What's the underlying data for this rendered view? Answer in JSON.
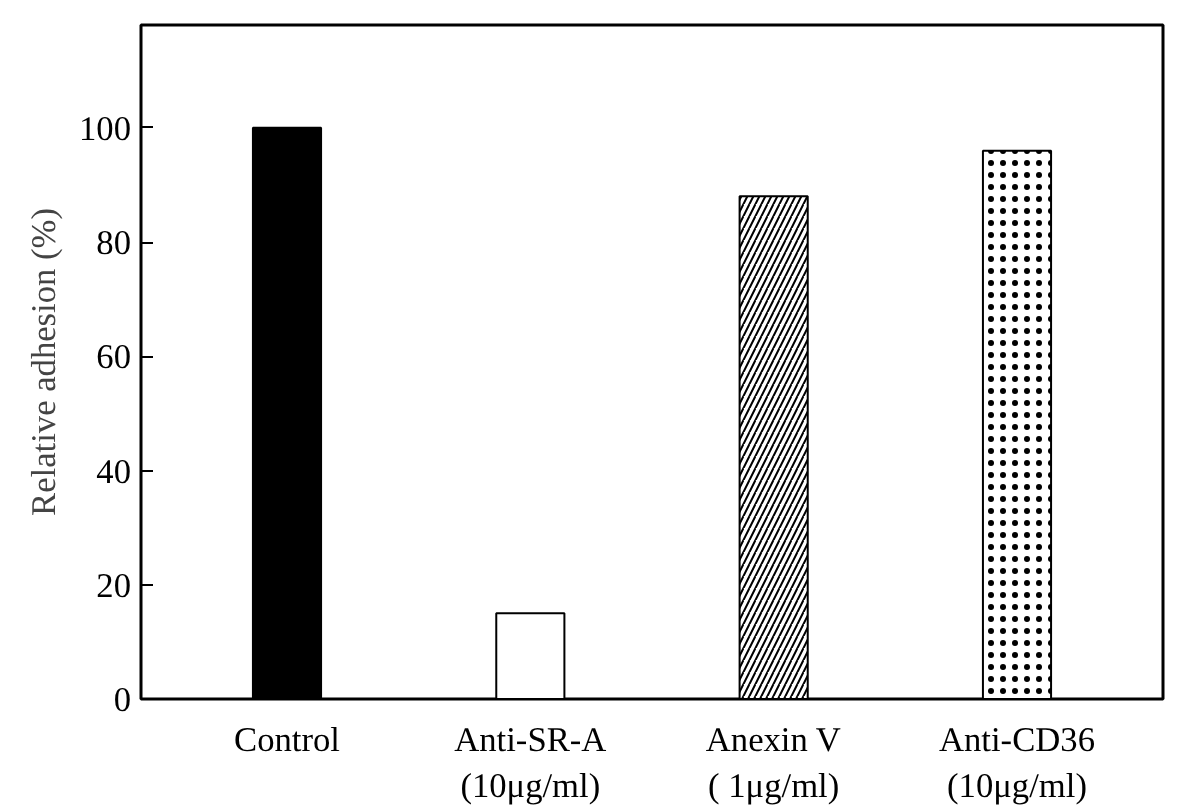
{
  "chart_data": {
    "type": "bar",
    "ylabel": "Relative adhesion (%)",
    "categories": [
      "Control",
      "Anti-SR-A\n(10μg/ml)",
      "Anexin V\n( 1μg/ml)",
      "Anti-CD36\n(10μg/ml)"
    ],
    "values": [
      100,
      15,
      88,
      96
    ],
    "colors": [
      "#000000",
      "#ffffff",
      "#ffffff",
      "#ffffff"
    ],
    "ylim": [
      0,
      118
    ],
    "yticks": [
      0,
      20,
      40,
      60,
      80,
      100
    ],
    "grid": false
  }
}
